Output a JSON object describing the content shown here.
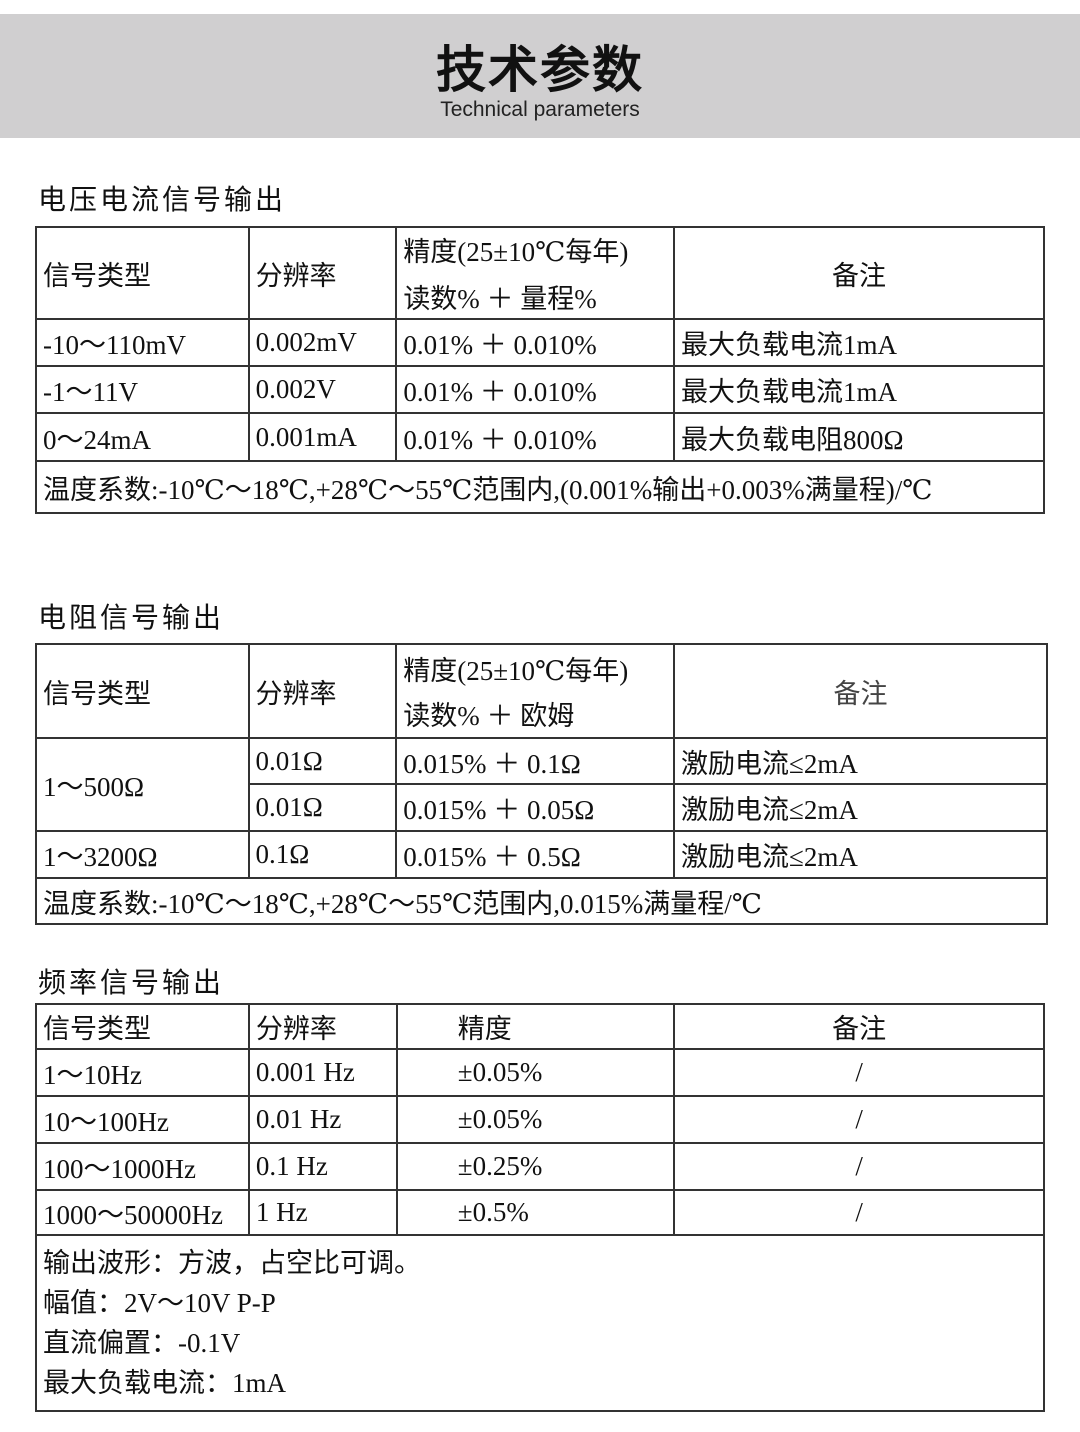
{
  "header": {
    "title": "技术参数",
    "subtitle": "Technical parameters"
  },
  "sections": [
    {
      "title": "电压电流信号输出",
      "headers": [
        "信号类型",
        "分辨率",
        "精度(25±10℃每年)",
        "读数% ＋ 量程%",
        "备注"
      ],
      "rows": [
        [
          "-10～110mV",
          "0.002mV",
          "0.01% ＋ 0.010%",
          "最大负载电流1mA"
        ],
        [
          "-1～11V",
          "0.002V",
          "0.01% ＋ 0.010%",
          "最大负载电流1mA"
        ],
        [
          "0～24mA",
          "0.001mA",
          "0.01% ＋ 0.010%",
          "最大负载电阻800Ω"
        ]
      ],
      "note": "温度系数:-10℃～18℃,+28℃～55℃范围内,(0.001%输出+0.003%满量程)/℃"
    },
    {
      "title": "电阻信号输出",
      "headers": [
        "信号类型",
        "分辨率",
        "精度(25±10℃每年)",
        "读数% ＋ 欧姆",
        "备注"
      ],
      "rows": [
        [
          "1～500Ω",
          "0.01Ω",
          "0.015% ＋ 0.1Ω",
          "激励电流≤2mA"
        ],
        [
          "",
          "0.01Ω",
          "0.015% ＋ 0.05Ω",
          "激励电流≤2mA"
        ],
        [
          "1～3200Ω",
          "0.1Ω",
          "0.015% ＋ 0.5Ω",
          "激励电流≤2mA"
        ]
      ],
      "note": "温度系数:-10℃～18℃,+28℃～55℃范围内,0.015%满量程/℃"
    },
    {
      "title": "频率信号输出",
      "headers": [
        "信号类型",
        "分辨率",
        "精度",
        "备注"
      ],
      "rows": [
        [
          "1～10Hz",
          "0.001 Hz",
          "±0.05%",
          "/"
        ],
        [
          "10～100Hz",
          "0.01 Hz",
          "±0.05%",
          "/"
        ],
        [
          "100～1000Hz",
          "0.1 Hz",
          "±0.25%",
          "/"
        ],
        [
          "1000～50000Hz",
          "1 Hz",
          "±0.5%",
          "/"
        ]
      ],
      "notes": [
        "输出波形：方波，占空比可调。",
        "幅值：2V～10V P-P",
        "直流偏置：-0.1V",
        "最大负载电流：1mA"
      ]
    }
  ]
}
